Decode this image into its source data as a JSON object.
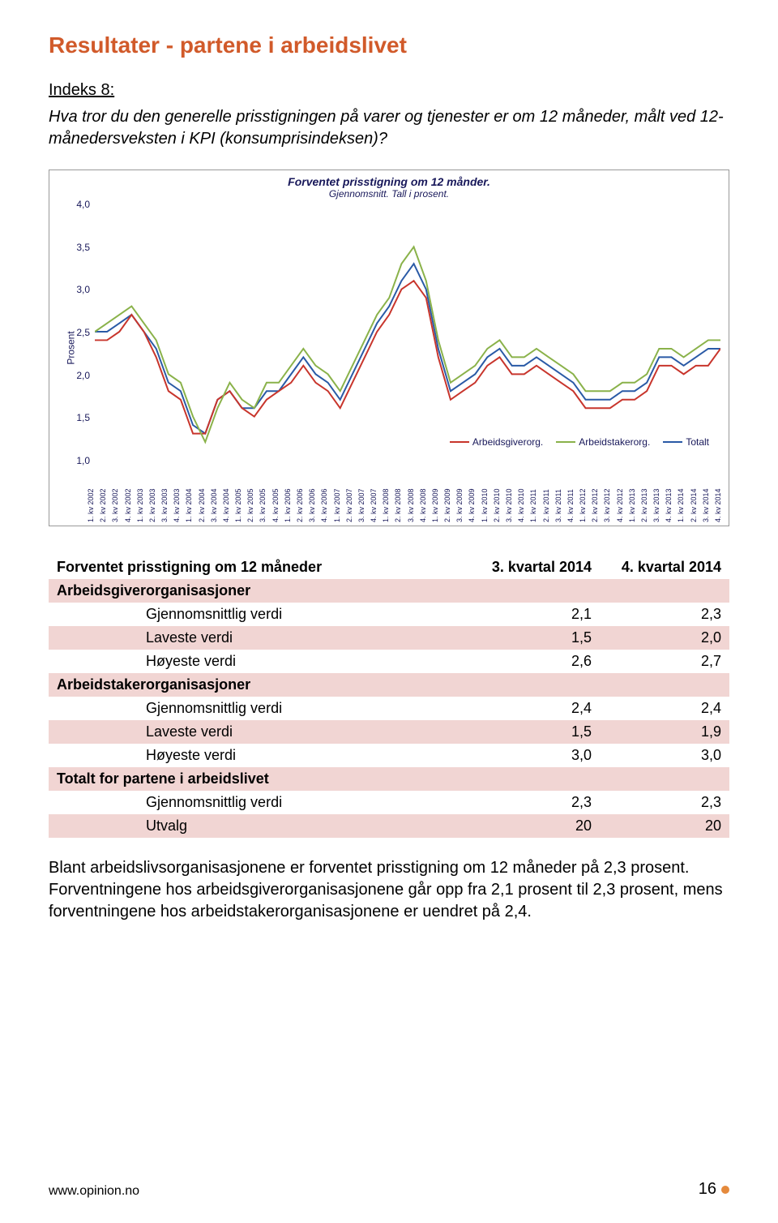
{
  "colors": {
    "title": "#d15a2a",
    "accent_bg": "#f1d5d3",
    "chart_text": "#18185a",
    "footer_dot": "#e58a3c",
    "series": {
      "arbeidsgiver": "#c8352c",
      "arbeidstaker": "#8ab24a",
      "totalt": "#2a5aa6"
    },
    "border": "#999999"
  },
  "title": "Resultater - partene i arbeidslivet",
  "indeks": "Indeks 8:",
  "question": "Hva tror du den generelle prisstigningen på varer og tjenester er om 12 måneder, målt ved 12-månedersveksten i KPI (konsumprisindeksen)?",
  "chart": {
    "title": "Forventet prisstigning om 12 månder.",
    "subtitle": "Gjennomsnitt. Tall i prosent.",
    "ylabel": "Prosent",
    "ylim": [
      1.0,
      4.0
    ],
    "ytick_step": 0.5,
    "yticks": [
      "1,0",
      "1,5",
      "2,0",
      "2,5",
      "3,0",
      "3,5",
      "4,0"
    ],
    "x_categories": [
      "1. kv 2002",
      "2. kv 2002",
      "3. kv 2002",
      "4. kv 2002",
      "1. kv 2003",
      "2. kv 2003",
      "3. kv 2003",
      "4. kv 2003",
      "1. kv 2004",
      "2. kv 2004",
      "3. kv 2004",
      "4. kv 2004",
      "1. kv 2005",
      "2. kv 2005",
      "3. kv 2005",
      "4. kv 2005",
      "1. kv 2006",
      "2. kv 2006",
      "3. kv 2006",
      "4. kv 2006",
      "1. kv 2007",
      "2. kv 2007",
      "3. kv 2007",
      "4. kv 2007",
      "1. kv 2008",
      "2. kv 2008",
      "3. kv 2008",
      "4. kv 2008",
      "1. kv 2009",
      "2. kv 2009",
      "3. kv 2009",
      "4. kv 2009",
      "1. kv 2010",
      "2. kv 2010",
      "3. kv 2010",
      "4. kv 2010",
      "1. kv 2011",
      "2. kv 2011",
      "3. kv 2011",
      "4. kv 2011",
      "1. kv 2012",
      "2. kv 2012",
      "3. kv 2012",
      "4. kv 2012",
      "1. kv 2013",
      "2. kv 2013",
      "3. kv 2013",
      "4. kv 2013",
      "1. kv 2014",
      "2. kv 2014",
      "3. kv 2014",
      "4. kv 2014"
    ],
    "series": {
      "totalt": [
        2.5,
        2.5,
        2.6,
        2.7,
        2.5,
        2.3,
        1.9,
        1.8,
        1.4,
        1.3,
        1.7,
        1.8,
        1.6,
        1.6,
        1.8,
        1.8,
        2.0,
        2.2,
        2.0,
        1.9,
        1.7,
        2.0,
        2.3,
        2.6,
        2.8,
        3.1,
        3.3,
        3.0,
        2.3,
        1.8,
        1.9,
        2.0,
        2.2,
        2.3,
        2.1,
        2.1,
        2.2,
        2.1,
        2.0,
        1.9,
        1.7,
        1.7,
        1.7,
        1.8,
        1.8,
        1.9,
        2.2,
        2.2,
        2.1,
        2.2,
        2.3,
        2.3
      ],
      "arbeidsgiver": [
        2.4,
        2.4,
        2.5,
        2.7,
        2.5,
        2.2,
        1.8,
        1.7,
        1.3,
        1.3,
        1.7,
        1.8,
        1.6,
        1.5,
        1.7,
        1.8,
        1.9,
        2.1,
        1.9,
        1.8,
        1.6,
        1.9,
        2.2,
        2.5,
        2.7,
        3.0,
        3.1,
        2.9,
        2.2,
        1.7,
        1.8,
        1.9,
        2.1,
        2.2,
        2.0,
        2.0,
        2.1,
        2.0,
        1.9,
        1.8,
        1.6,
        1.6,
        1.6,
        1.7,
        1.7,
        1.8,
        2.1,
        2.1,
        2.0,
        2.1,
        2.1,
        2.3
      ],
      "arbeidstaker": [
        2.5,
        2.6,
        2.7,
        2.8,
        2.6,
        2.4,
        2.0,
        1.9,
        1.5,
        1.2,
        1.6,
        1.9,
        1.7,
        1.6,
        1.9,
        1.9,
        2.1,
        2.3,
        2.1,
        2.0,
        1.8,
        2.1,
        2.4,
        2.7,
        2.9,
        3.3,
        3.5,
        3.1,
        2.4,
        1.9,
        2.0,
        2.1,
        2.3,
        2.4,
        2.2,
        2.2,
        2.3,
        2.2,
        2.1,
        2.0,
        1.8,
        1.8,
        1.8,
        1.9,
        1.9,
        2.0,
        2.3,
        2.3,
        2.2,
        2.3,
        2.4,
        2.4
      ]
    },
    "legend": [
      {
        "label": "Arbeidsgiverorg.",
        "key": "arbeidsgiver"
      },
      {
        "label": "Arbeidstakerorg.",
        "key": "arbeidstaker"
      },
      {
        "label": "Totalt",
        "key": "totalt"
      }
    ]
  },
  "table": {
    "header": [
      "Forventet prisstigning om 12 måneder",
      "3. kvartal 2014",
      "4. kvartal 2014"
    ],
    "sections": [
      {
        "title": "Arbeidsgiverorganisasjoner",
        "rows": [
          [
            "Gjennomsnittlig verdi",
            "2,1",
            "2,3"
          ],
          [
            "Laveste verdi",
            "1,5",
            "2,0"
          ],
          [
            "Høyeste verdi",
            "2,6",
            "2,7"
          ]
        ]
      },
      {
        "title": "Arbeidstakerorganisasjoner",
        "rows": [
          [
            "Gjennomsnittlig verdi",
            "2,4",
            "2,4"
          ],
          [
            "Laveste verdi",
            "1,5",
            "1,9"
          ],
          [
            "Høyeste verdi",
            "3,0",
            "3,0"
          ]
        ]
      },
      {
        "title": "Totalt for partene i arbeidslivet",
        "rows": [
          [
            "Gjennomsnittlig verdi",
            "2,3",
            "2,3"
          ],
          [
            "Utvalg",
            "20",
            "20"
          ]
        ]
      }
    ]
  },
  "body_text": "Blant arbeidslivsorganisasjonene er forventet prisstigning om 12 måneder på 2,3 prosent. Forventningene hos arbeidsgiverorganisasjonene går opp fra 2,1 prosent til 2,3 prosent, mens forventningene hos arbeidstakerorganisasjonene er uendret på 2,4.",
  "footer": {
    "url": "www.opinion.no",
    "page": "16"
  }
}
